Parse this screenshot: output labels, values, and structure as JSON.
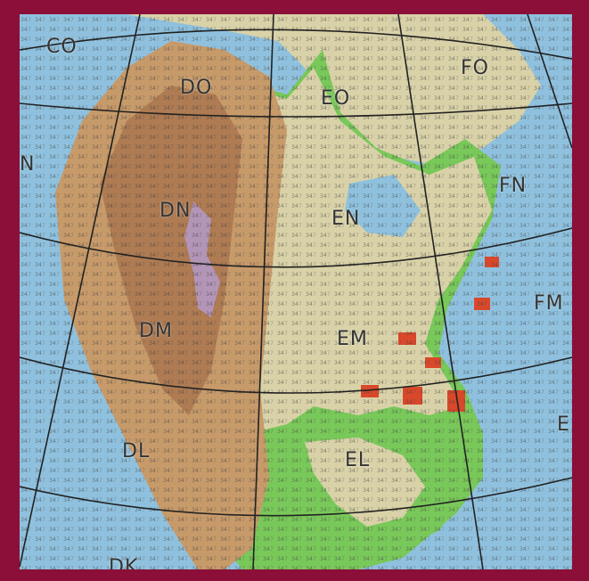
{
  "map": {
    "title": "",
    "colors": {
      "frame": "#8b0f38",
      "ocean": "#8fc1de",
      "lowland": "#79c85a",
      "plains": "#d9d2a8",
      "highland": "#c79a6a",
      "mountain": "#a9764f",
      "peak": "#b49ac9",
      "hotspot": "#d9482b",
      "grid_line": "#222222"
    },
    "grid_labels": [
      {
        "id": "co",
        "text": "CO"
      },
      {
        "id": "do",
        "text": "DO"
      },
      {
        "id": "eo",
        "text": "EO"
      },
      {
        "id": "fo",
        "text": "FO"
      },
      {
        "id": "n-left",
        "text": "N"
      },
      {
        "id": "dn",
        "text": "DN"
      },
      {
        "id": "en",
        "text": "EN"
      },
      {
        "id": "fn",
        "text": "FN"
      },
      {
        "id": "dm",
        "text": "DM"
      },
      {
        "id": "em",
        "text": "EM"
      },
      {
        "id": "fm",
        "text": "FM"
      },
      {
        "id": "dl",
        "text": "DL"
      },
      {
        "id": "el",
        "text": "EL"
      },
      {
        "id": "e-right",
        "text": "E"
      },
      {
        "id": "dk",
        "text": "DK"
      }
    ]
  }
}
